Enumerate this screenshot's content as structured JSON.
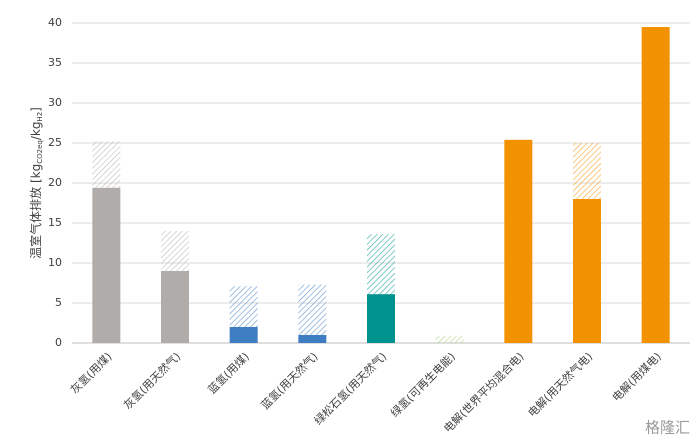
{
  "chart_data": {
    "type": "stacked_bar",
    "y_label_parts": [
      "温室气体排放  [kg",
      "CO2eq",
      "/kg",
      "H2",
      "]"
    ],
    "categories": [
      "灰氢(用煤)",
      "灰氢(用天然气)",
      "蓝氢(用煤)",
      "蓝氢(用天然气)",
      "绿松石氢(用天然气)",
      "绿氢(可再生电能)",
      "电解(世界平均混合电)",
      "电解(用天然气电)",
      "电解(用煤电)"
    ],
    "colors": [
      "#b0acaa",
      "#b0acaa",
      "#3f7dc2",
      "#3f7dc2",
      "#00928f",
      "#9ccc6f",
      "#f39200",
      "#f39200",
      "#f39200"
    ],
    "series": [
      {
        "values": [
          19.4,
          9.0,
          2.0,
          1.0,
          6.1,
          0,
          25.4,
          18.0,
          39.5
        ]
      },
      {
        "values": [
          5.8,
          5.0,
          5.1,
          6.3,
          7.5,
          0.9,
          0,
          7.0,
          0
        ],
        "pattern": "hatch"
      }
    ],
    "ylim": [
      0,
      40
    ],
    "yticks": [
      0,
      5,
      10,
      15,
      20,
      25,
      30,
      35,
      40
    ],
    "grid": true,
    "watermark": "格隆汇"
  }
}
